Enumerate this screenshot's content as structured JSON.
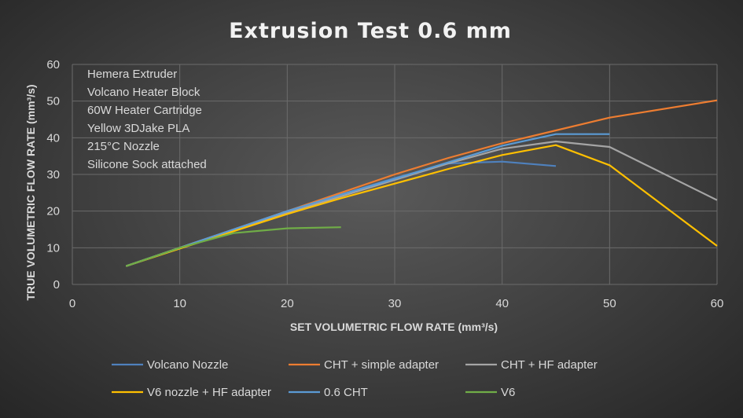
{
  "chart_data": {
    "type": "line",
    "title": "Extrusion Test 0.6 mm",
    "xlabel": "SET VOLUMETRIC FLOW RATE (mm³/s)",
    "ylabel": "TRUE VOLUMETRIC FLOW RATE (mm³/s)",
    "xlim": [
      0,
      60
    ],
    "ylim": [
      0,
      60
    ],
    "xticks": [
      0,
      10,
      20,
      30,
      40,
      50,
      60
    ],
    "yticks": [
      0,
      10,
      20,
      30,
      40,
      50,
      60
    ],
    "grid": true,
    "legend_position": "bottom",
    "annotations": [
      "Hemera Extruder",
      "Volcano Heater Block",
      "60W Heater Cartridge",
      "Yellow 3DJake PLA",
      "215°C Nozzle",
      "Silicone Sock attached"
    ],
    "series": [
      {
        "name": "Volcano Nozzle",
        "color": "#4f81bd",
        "x": [
          5,
          10,
          15,
          20,
          25,
          30,
          35,
          40,
          45
        ],
        "y": [
          5,
          10,
          15,
          20,
          24.5,
          29,
          33,
          33.5,
          32.3
        ]
      },
      {
        "name": "CHT + simple adapter",
        "color": "#ed7d31",
        "x": [
          5,
          10,
          15,
          20,
          25,
          30,
          35,
          40,
          45,
          50,
          60
        ],
        "y": [
          5,
          10,
          15,
          20,
          25,
          30,
          34.5,
          38.5,
          42,
          45.5,
          50.2
        ]
      },
      {
        "name": "CHT + HF adapter",
        "color": "#a5a5a5",
        "x": [
          5,
          10,
          15,
          20,
          25,
          30,
          35,
          40,
          45,
          50,
          60
        ],
        "y": [
          5,
          10,
          14.8,
          19.5,
          24,
          28.5,
          33,
          37,
          39,
          37.5,
          23
        ]
      },
      {
        "name": "V6 nozzle + HF adapter",
        "color": "#ffc000",
        "x": [
          5,
          10,
          15,
          20,
          25,
          30,
          35,
          40,
          45,
          50,
          60
        ],
        "y": [
          5,
          9.8,
          14.5,
          19.2,
          23.5,
          27.5,
          31.5,
          35.3,
          38,
          32.5,
          10.5
        ]
      },
      {
        "name": "0.6 CHT",
        "color": "#5b9bd5",
        "x": [
          5,
          10,
          15,
          20,
          25,
          30,
          35,
          40,
          45,
          50
        ],
        "y": [
          5,
          10,
          15,
          20,
          24.5,
          28.8,
          33.3,
          37.8,
          41,
          41
        ]
      },
      {
        "name": "V6",
        "color": "#70ad47",
        "x": [
          5,
          10,
          15,
          20,
          25
        ],
        "y": [
          5,
          10,
          14,
          15.3,
          15.6
        ]
      }
    ]
  }
}
